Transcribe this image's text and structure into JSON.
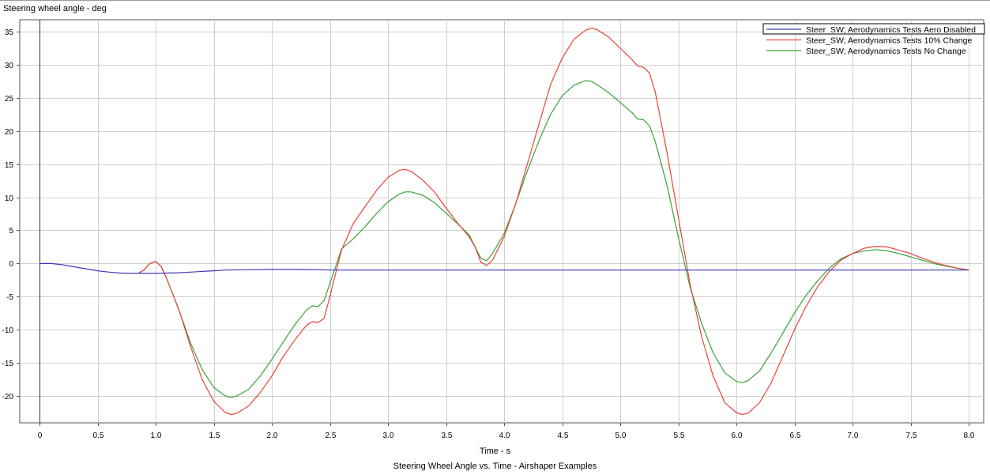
{
  "chart_data": {
    "type": "line",
    "title": "Steering Wheel Angle vs. Time - Airshaper Examples",
    "xlabel": "Time - s",
    "ylabel": "Steering wheel angle - deg",
    "xlim": [
      0,
      8.0
    ],
    "ylim": [
      -24,
      36
    ],
    "x_ticks": [
      "0",
      "0.5",
      "1.0",
      "1.5",
      "2.0",
      "2.5",
      "3.0",
      "3.5",
      "4.0",
      "4.5",
      "5.0",
      "5.5",
      "6.0",
      "6.5",
      "7.0",
      "7.5",
      "8.0"
    ],
    "x_tick_values": [
      0,
      0.5,
      1.0,
      1.5,
      2.0,
      2.5,
      3.0,
      3.5,
      4.0,
      4.5,
      5.0,
      5.5,
      6.0,
      6.5,
      7.0,
      7.5,
      8.0
    ],
    "y_ticks": [
      "35",
      "30",
      "25",
      "20",
      "15",
      "10",
      "5",
      "0",
      "-5",
      "-10",
      "-15",
      "-20"
    ],
    "y_tick_values": [
      35,
      30,
      25,
      20,
      15,
      10,
      5,
      0,
      -5,
      -10,
      -15,
      -20
    ],
    "grid": true,
    "legend_position": "top-right",
    "series": [
      {
        "name": "Steer_SW; Aerodynamics Tests Aero Disabled",
        "color": "#3b3bb8",
        "points": [
          [
            0,
            0
          ],
          [
            0.1,
            0
          ],
          [
            0.2,
            -0.2
          ],
          [
            0.3,
            -0.5
          ],
          [
            0.4,
            -0.8
          ],
          [
            0.5,
            -1.1
          ],
          [
            0.6,
            -1.3
          ],
          [
            0.7,
            -1.45
          ],
          [
            0.8,
            -1.5
          ],
          [
            0.9,
            -1.5
          ],
          [
            1.0,
            -1.5
          ],
          [
            1.1,
            -1.45
          ],
          [
            1.2,
            -1.4
          ],
          [
            1.3,
            -1.3
          ],
          [
            1.4,
            -1.2
          ],
          [
            1.5,
            -1.1
          ],
          [
            1.6,
            -1.0
          ],
          [
            1.8,
            -0.95
          ],
          [
            2.0,
            -0.9
          ],
          [
            2.2,
            -0.9
          ],
          [
            2.4,
            -0.95
          ],
          [
            2.5,
            -1.0
          ],
          [
            3.0,
            -1.0
          ],
          [
            4.0,
            -1.0
          ],
          [
            5.0,
            -1.0
          ],
          [
            6.0,
            -1.0
          ],
          [
            7.0,
            -1.0
          ],
          [
            8.0,
            -1.0
          ]
        ]
      },
      {
        "name": "Steer_SW; Aerodynamics Tests 10%  Change",
        "color": "#e8453c",
        "points": [
          [
            0.85,
            -1.5
          ],
          [
            0.9,
            -1.0
          ],
          [
            0.95,
            0.0
          ],
          [
            1.0,
            0.3
          ],
          [
            1.05,
            -0.5
          ],
          [
            1.1,
            -2.5
          ],
          [
            1.2,
            -7
          ],
          [
            1.3,
            -12.5
          ],
          [
            1.4,
            -17.5
          ],
          [
            1.5,
            -20.8
          ],
          [
            1.6,
            -22.5
          ],
          [
            1.65,
            -22.8
          ],
          [
            1.7,
            -22.6
          ],
          [
            1.8,
            -21.5
          ],
          [
            1.9,
            -19.5
          ],
          [
            2.0,
            -17
          ],
          [
            2.1,
            -14
          ],
          [
            2.2,
            -11.5
          ],
          [
            2.3,
            -9.3
          ],
          [
            2.35,
            -8.8
          ],
          [
            2.4,
            -8.9
          ],
          [
            2.45,
            -8.3
          ],
          [
            2.5,
            -5
          ],
          [
            2.55,
            -1.5
          ],
          [
            2.6,
            2
          ],
          [
            2.7,
            6
          ],
          [
            2.8,
            8.5
          ],
          [
            2.9,
            11
          ],
          [
            3.0,
            13
          ],
          [
            3.1,
            14.1
          ],
          [
            3.15,
            14.2
          ],
          [
            3.2,
            13.9
          ],
          [
            3.3,
            12.6
          ],
          [
            3.4,
            10.8
          ],
          [
            3.5,
            8.4
          ],
          [
            3.6,
            6.1
          ],
          [
            3.7,
            4
          ],
          [
            3.75,
            2.5
          ],
          [
            3.8,
            0.2
          ],
          [
            3.85,
            -0.3
          ],
          [
            3.9,
            0.5
          ],
          [
            4.0,
            4
          ],
          [
            4.1,
            9
          ],
          [
            4.2,
            15
          ],
          [
            4.3,
            21
          ],
          [
            4.4,
            27
          ],
          [
            4.5,
            31
          ],
          [
            4.6,
            33.8
          ],
          [
            4.7,
            35.2
          ],
          [
            4.75,
            35.5
          ],
          [
            4.8,
            35.3
          ],
          [
            4.9,
            34.2
          ],
          [
            5.0,
            32.5
          ],
          [
            5.1,
            30.8
          ],
          [
            5.15,
            29.8
          ],
          [
            5.2,
            29.6
          ],
          [
            5.25,
            28.8
          ],
          [
            5.3,
            26
          ],
          [
            5.4,
            17
          ],
          [
            5.5,
            7
          ],
          [
            5.6,
            -3
          ],
          [
            5.7,
            -11
          ],
          [
            5.8,
            -17
          ],
          [
            5.9,
            -21
          ],
          [
            6.0,
            -22.5
          ],
          [
            6.05,
            -22.8
          ],
          [
            6.1,
            -22.6
          ],
          [
            6.2,
            -21
          ],
          [
            6.3,
            -18
          ],
          [
            6.4,
            -14
          ],
          [
            6.5,
            -10
          ],
          [
            6.6,
            -6.5
          ],
          [
            6.7,
            -3.5
          ],
          [
            6.8,
            -1.2
          ],
          [
            6.9,
            0.5
          ],
          [
            7.0,
            1.5
          ],
          [
            7.1,
            2.3
          ],
          [
            7.2,
            2.6
          ],
          [
            7.3,
            2.5
          ],
          [
            7.4,
            2.0
          ],
          [
            7.5,
            1.5
          ],
          [
            7.6,
            0.8
          ],
          [
            7.7,
            0.2
          ],
          [
            7.8,
            -0.3
          ],
          [
            7.9,
            -0.7
          ],
          [
            8.0,
            -1.0
          ]
        ]
      },
      {
        "name": "Steer_SW; Aerodynamics Tests No Change",
        "color": "#3aa23a",
        "points": [
          [
            0.85,
            -1.5
          ],
          [
            0.9,
            -1.0
          ],
          [
            0.95,
            0.0
          ],
          [
            1.0,
            0.3
          ],
          [
            1.05,
            -0.5
          ],
          [
            1.1,
            -2.5
          ],
          [
            1.2,
            -7
          ],
          [
            1.3,
            -12
          ],
          [
            1.4,
            -16
          ],
          [
            1.5,
            -18.7
          ],
          [
            1.6,
            -20
          ],
          [
            1.65,
            -20.2
          ],
          [
            1.7,
            -20.0
          ],
          [
            1.8,
            -19
          ],
          [
            1.9,
            -17
          ],
          [
            2.0,
            -14.5
          ],
          [
            2.1,
            -11.8
          ],
          [
            2.2,
            -9.2
          ],
          [
            2.3,
            -7
          ],
          [
            2.35,
            -6.4
          ],
          [
            2.4,
            -6.5
          ],
          [
            2.45,
            -5.6
          ],
          [
            2.5,
            -3
          ],
          [
            2.55,
            -0.5
          ],
          [
            2.6,
            2.2
          ],
          [
            2.7,
            3.7
          ],
          [
            2.8,
            5.5
          ],
          [
            2.9,
            7.5
          ],
          [
            3.0,
            9.3
          ],
          [
            3.1,
            10.5
          ],
          [
            3.15,
            10.8
          ],
          [
            3.2,
            10.8
          ],
          [
            3.3,
            10.3
          ],
          [
            3.4,
            9.2
          ],
          [
            3.5,
            7.6
          ],
          [
            3.6,
            6
          ],
          [
            3.7,
            4.3
          ],
          [
            3.75,
            2.5
          ],
          [
            3.8,
            0.8
          ],
          [
            3.85,
            0.4
          ],
          [
            3.9,
            1.5
          ],
          [
            4.0,
            4.5
          ],
          [
            4.1,
            9
          ],
          [
            4.2,
            14
          ],
          [
            4.3,
            18.5
          ],
          [
            4.4,
            22.5
          ],
          [
            4.5,
            25.3
          ],
          [
            4.6,
            26.9
          ],
          [
            4.7,
            27.6
          ],
          [
            4.75,
            27.5
          ],
          [
            4.8,
            27
          ],
          [
            4.9,
            25.8
          ],
          [
            5.0,
            24.3
          ],
          [
            5.1,
            22.8
          ],
          [
            5.15,
            21.8
          ],
          [
            5.2,
            21.7
          ],
          [
            5.25,
            20.8
          ],
          [
            5.3,
            18.5
          ],
          [
            5.4,
            12
          ],
          [
            5.5,
            4
          ],
          [
            5.6,
            -3.5
          ],
          [
            5.7,
            -9
          ],
          [
            5.8,
            -13.5
          ],
          [
            5.9,
            -16.5
          ],
          [
            6.0,
            -17.8
          ],
          [
            6.05,
            -18.0
          ],
          [
            6.1,
            -17.7
          ],
          [
            6.2,
            -16.2
          ],
          [
            6.3,
            -13.5
          ],
          [
            6.4,
            -10.5
          ],
          [
            6.5,
            -7.5
          ],
          [
            6.6,
            -4.8
          ],
          [
            6.7,
            -2.6
          ],
          [
            6.8,
            -0.7
          ],
          [
            6.9,
            0.7
          ],
          [
            7.0,
            1.5
          ],
          [
            7.1,
            1.9
          ],
          [
            7.2,
            2.1
          ],
          [
            7.3,
            1.9
          ],
          [
            7.4,
            1.5
          ],
          [
            7.5,
            1.0
          ],
          [
            7.6,
            0.5
          ],
          [
            7.7,
            0.0
          ],
          [
            7.8,
            -0.4
          ],
          [
            7.9,
            -0.7
          ],
          [
            8.0,
            -1.0
          ]
        ]
      }
    ]
  }
}
